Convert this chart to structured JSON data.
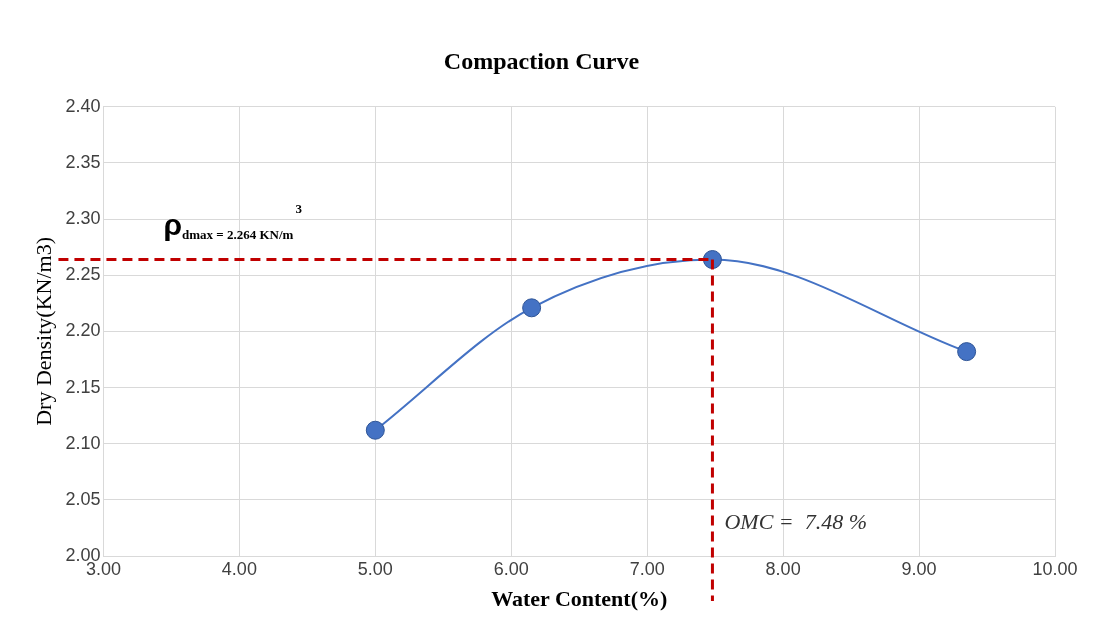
{
  "chart_data": {
    "type": "line",
    "title": "Compaction Curve",
    "xlabel": "Water Content(%)",
    "ylabel": "Dry Density(KN/m3)",
    "x": [
      5.0,
      6.15,
      7.48,
      9.35
    ],
    "series": [
      {
        "color": "#4472c4",
        "values": [
          2.112,
          2.221,
          2.264,
          2.182
        ]
      }
    ],
    "xlim": [
      3,
      10
    ],
    "xticks": [
      {
        "value": 3,
        "label": "3.00"
      },
      {
        "value": 4,
        "label": "4.00"
      },
      {
        "value": 5,
        "label": "5.00"
      },
      {
        "value": 6,
        "label": "6.00"
      },
      {
        "value": 7,
        "label": "7.00"
      },
      {
        "value": 8,
        "label": "8.00"
      },
      {
        "value": 9,
        "label": "9.00"
      },
      {
        "value": 10,
        "label": "10.00"
      }
    ],
    "ylim": [
      2,
      2.4
    ],
    "yticks": [
      {
        "value": 2,
        "label": "2.00"
      },
      {
        "value": 2.05,
        "label": "2.05"
      },
      {
        "value": 2.1,
        "label": "2.10"
      },
      {
        "value": 2.15,
        "label": "2.15"
      },
      {
        "value": 2.2,
        "label": "2.20"
      },
      {
        "value": 2.25,
        "label": "2.25"
      },
      {
        "value": 2.3,
        "label": "2.30"
      },
      {
        "value": 2.35,
        "label": "2.35"
      },
      {
        "value": 2.4,
        "label": "2.40"
      }
    ],
    "ref_lines": [
      {
        "axis": "y",
        "value": 2.264,
        "label": "ρ$_{dmax = 2.264 KN/m}$$^{3}$",
        "color": "#c00000",
        "line_style": "dashed"
      },
      {
        "axis": "x",
        "value": 7.48,
        "label": "OMC =  7.48 %",
        "color": "#c00000",
        "line_style": "dashed"
      }
    ],
    "grid": true,
    "marker": "circle",
    "line_style": "solid",
    "legend": false
  }
}
